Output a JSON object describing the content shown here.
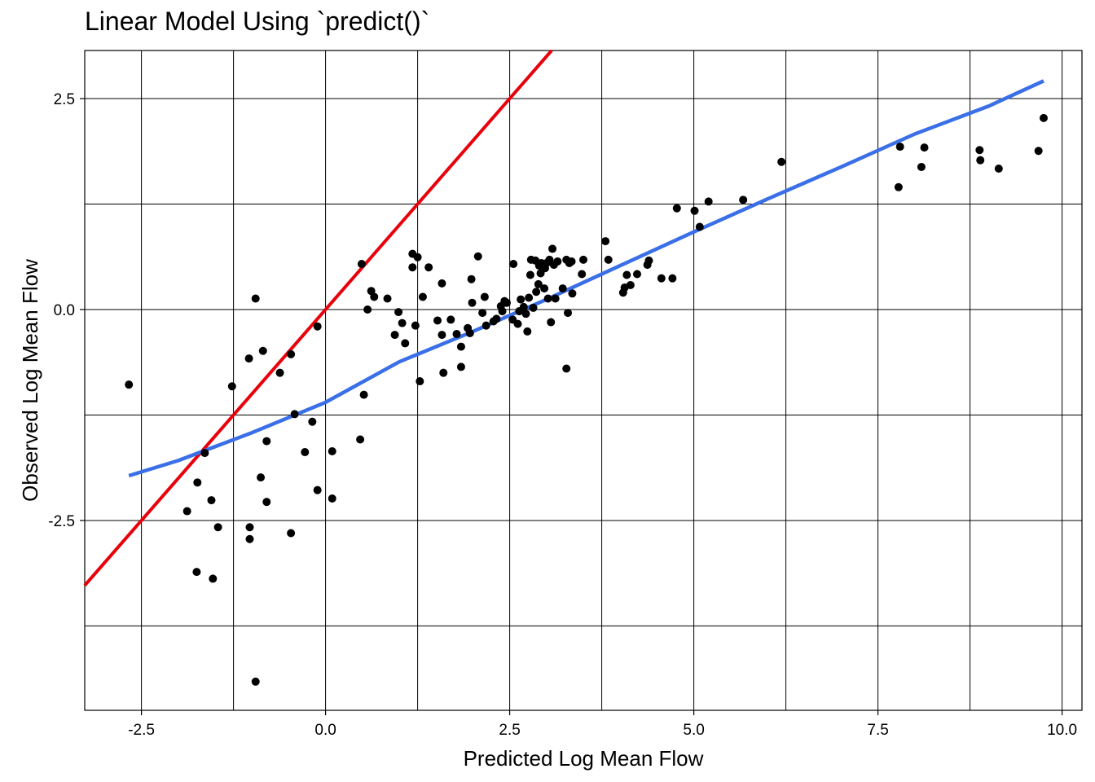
{
  "chart_data": {
    "type": "scatter",
    "title": "Linear Model Using `predict()`",
    "xlabel": "Predicted Log Mean Flow",
    "ylabel": "Observed Log Mean Flow",
    "xlim": [
      -3.27,
      10.27
    ],
    "ylim": [
      -4.75,
      3.07
    ],
    "x_ticks": [
      -2.5,
      0.0,
      2.5,
      5.0,
      7.5,
      10.0
    ],
    "x_tick_labels": [
      "-2.5",
      "0.0",
      "2.5",
      "5.0",
      "7.5",
      "10.0"
    ],
    "y_ticks": [
      -2.5,
      0.0,
      2.5
    ],
    "y_tick_labels": [
      "-2.5",
      "0.0",
      "2.5"
    ],
    "x_grid": [
      -2.5,
      -1.25,
      0.0,
      1.25,
      2.5,
      3.75,
      5.0,
      6.25,
      7.5,
      8.75,
      10.0
    ],
    "y_grid": [
      -3.75,
      -2.5,
      -1.25,
      0.0,
      1.25,
      2.5
    ],
    "grid": true,
    "colors": {
      "points": "#000000",
      "identity_line": "#e8000b",
      "fit_line": "#3a6fe8",
      "grid": "#000000"
    },
    "points": [
      [
        -2.67,
        -0.89
      ],
      [
        -1.88,
        -2.39
      ],
      [
        -1.75,
        -3.11
      ],
      [
        -1.74,
        -2.05
      ],
      [
        -1.64,
        -1.7
      ],
      [
        -1.55,
        -2.26
      ],
      [
        -1.53,
        -3.19
      ],
      [
        -1.46,
        -2.58
      ],
      [
        -1.27,
        -0.91
      ],
      [
        -1.04,
        -0.58
      ],
      [
        -1.03,
        -2.58
      ],
      [
        -1.03,
        -2.72
      ],
      [
        -0.95,
        0.13
      ],
      [
        -0.95,
        -4.41
      ],
      [
        -0.88,
        -1.99
      ],
      [
        -0.85,
        -0.49
      ],
      [
        -0.8,
        -1.56
      ],
      [
        -0.8,
        -2.28
      ],
      [
        -0.62,
        -0.75
      ],
      [
        -0.47,
        -0.53
      ],
      [
        -0.47,
        -2.65
      ],
      [
        -0.42,
        -1.24
      ],
      [
        -0.28,
        -1.69
      ],
      [
        -0.18,
        -1.33
      ],
      [
        -0.11,
        -0.2
      ],
      [
        -0.11,
        -2.14
      ],
      [
        0.09,
        -1.68
      ],
      [
        0.09,
        -2.24
      ],
      [
        0.47,
        -1.54
      ],
      [
        0.49,
        0.54
      ],
      [
        0.52,
        -1.01
      ],
      [
        0.57,
        0.0
      ],
      [
        0.62,
        0.22
      ],
      [
        0.66,
        0.15
      ],
      [
        0.84,
        0.13
      ],
      [
        0.94,
        -0.3
      ],
      [
        0.99,
        -0.03
      ],
      [
        1.04,
        -0.16
      ],
      [
        1.08,
        -0.4
      ],
      [
        1.18,
        0.5
      ],
      [
        1.18,
        0.66
      ],
      [
        1.22,
        -0.19
      ],
      [
        1.25,
        0.62
      ],
      [
        1.28,
        -0.85
      ],
      [
        1.32,
        0.15
      ],
      [
        1.4,
        0.5
      ],
      [
        1.52,
        -0.13
      ],
      [
        1.58,
        0.31
      ],
      [
        1.58,
        -0.3
      ],
      [
        1.6,
        -0.75
      ],
      [
        1.7,
        -0.12
      ],
      [
        1.78,
        -0.29
      ],
      [
        1.84,
        -0.68
      ],
      [
        1.84,
        -0.44
      ],
      [
        1.93,
        -0.22
      ],
      [
        1.96,
        -0.28
      ],
      [
        1.98,
        0.36
      ],
      [
        1.99,
        0.08
      ],
      [
        2.07,
        0.63
      ],
      [
        2.13,
        -0.04
      ],
      [
        2.16,
        0.15
      ],
      [
        2.18,
        -0.19
      ],
      [
        2.28,
        -0.14
      ],
      [
        2.32,
        -0.11
      ],
      [
        2.38,
        0.04
      ],
      [
        2.4,
        -0.02
      ],
      [
        2.43,
        0.1
      ],
      [
        2.46,
        0.08
      ],
      [
        2.54,
        -0.12
      ],
      [
        2.55,
        0.54
      ],
      [
        2.61,
        -0.17
      ],
      [
        2.63,
        -0.02
      ],
      [
        2.65,
        0.12
      ],
      [
        2.69,
        0.03
      ],
      [
        2.72,
        -0.05
      ],
      [
        2.74,
        -0.26
      ],
      [
        2.76,
        0.14
      ],
      [
        2.78,
        0.41
      ],
      [
        2.79,
        0.59
      ],
      [
        2.82,
        0.02
      ],
      [
        2.85,
        0.58
      ],
      [
        2.86,
        0.21
      ],
      [
        2.89,
        0.3
      ],
      [
        2.9,
        0.52
      ],
      [
        2.92,
        0.43
      ],
      [
        2.93,
        0.55
      ],
      [
        2.97,
        0.25
      ],
      [
        2.98,
        0.49
      ],
      [
        3.0,
        0.55
      ],
      [
        3.02,
        0.13
      ],
      [
        3.04,
        0.59
      ],
      [
        3.06,
        -0.15
      ],
      [
        3.08,
        0.72
      ],
      [
        3.1,
        0.53
      ],
      [
        3.12,
        0.13
      ],
      [
        3.15,
        0.57
      ],
      [
        3.22,
        0.25
      ],
      [
        3.27,
        0.59
      ],
      [
        3.27,
        -0.7
      ],
      [
        3.29,
        -0.04
      ],
      [
        3.31,
        0.55
      ],
      [
        3.34,
        0.57
      ],
      [
        3.35,
        0.19
      ],
      [
        3.48,
        0.42
      ],
      [
        3.5,
        0.59
      ],
      [
        3.8,
        0.81
      ],
      [
        3.84,
        0.59
      ],
      [
        4.04,
        0.2
      ],
      [
        4.06,
        0.26
      ],
      [
        4.09,
        0.41
      ],
      [
        4.14,
        0.29
      ],
      [
        4.23,
        0.42
      ],
      [
        4.37,
        0.53
      ],
      [
        4.39,
        0.58
      ],
      [
        4.56,
        0.37
      ],
      [
        4.71,
        0.37
      ],
      [
        4.77,
        1.2
      ],
      [
        5.01,
        1.17
      ],
      [
        5.08,
        0.98
      ],
      [
        5.2,
        1.28
      ],
      [
        5.67,
        1.3
      ],
      [
        6.19,
        1.75
      ],
      [
        7.78,
        1.45
      ],
      [
        7.8,
        1.93
      ],
      [
        8.09,
        1.69
      ],
      [
        8.13,
        1.92
      ],
      [
        8.88,
        1.89
      ],
      [
        8.89,
        1.77
      ],
      [
        9.14,
        1.67
      ],
      [
        9.68,
        1.88
      ],
      [
        9.75,
        2.27
      ]
    ],
    "identity_line": [
      [
        -3.27,
        -3.27
      ],
      [
        3.07,
        3.07
      ]
    ],
    "fit_line": [
      [
        -2.67,
        -1.97
      ],
      [
        -2.0,
        -1.79
      ],
      [
        -1.0,
        -1.46
      ],
      [
        0.0,
        -1.1
      ],
      [
        1.0,
        -0.62
      ],
      [
        2.0,
        -0.26
      ],
      [
        3.0,
        0.12
      ],
      [
        4.0,
        0.52
      ],
      [
        5.0,
        0.92
      ],
      [
        6.0,
        1.31
      ],
      [
        7.0,
        1.69
      ],
      [
        8.0,
        2.08
      ],
      [
        9.0,
        2.41
      ],
      [
        9.75,
        2.71
      ]
    ]
  }
}
